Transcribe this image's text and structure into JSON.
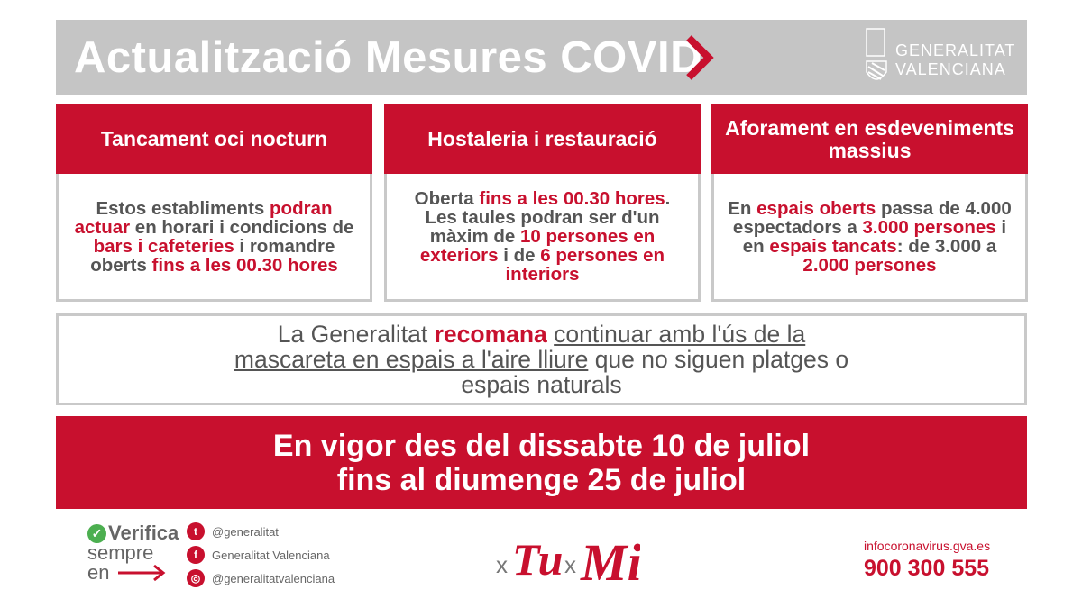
{
  "header": {
    "title": "Actualització Mesures COVID",
    "logo_text": "GENERALITAT VALENCIANA",
    "logo_line1": "GENERALITAT",
    "logo_line2": "VALENCIANA"
  },
  "colors": {
    "brand_red": "#c8102e",
    "header_gray": "#c5c5c5",
    "text_gray": "#555555"
  },
  "columns": [
    {
      "title": "Tancament oci nocturn",
      "body": [
        {
          "t": "Estos establiments ",
          "hl": false
        },
        {
          "t": "podran actuar",
          "hl": true
        },
        {
          "t": " en horari i condicions de ",
          "hl": false
        },
        {
          "t": "bars i cafeteries",
          "hl": true
        },
        {
          "t": " i romandre oberts ",
          "hl": false
        },
        {
          "t": "fins a les 00.30 hores",
          "hl": true
        }
      ]
    },
    {
      "title": "Hostaleria i restauració",
      "body": [
        {
          "t": "Oberta ",
          "hl": false
        },
        {
          "t": "fins a les 00.30 hores",
          "hl": true
        },
        {
          "t": ". Les taules podran ser d'un màxim de ",
          "hl": false
        },
        {
          "t": "10 persones en exteriors",
          "hl": true
        },
        {
          "t": " i de ",
          "hl": false
        },
        {
          "t": "6 persones en interiors",
          "hl": true
        }
      ]
    },
    {
      "title": "Aforament en esdeveniments massius",
      "body": [
        {
          "t": "En ",
          "hl": false
        },
        {
          "t": "espais oberts",
          "hl": true
        },
        {
          "t": " passa de 4.000 espectadors a ",
          "hl": false
        },
        {
          "t": "3.000 persones",
          "hl": true
        },
        {
          "t": " i en ",
          "hl": false
        },
        {
          "t": "espais tancats",
          "hl": true
        },
        {
          "t": ": de 3.000 a ",
          "hl": false
        },
        {
          "t": "2.000 persones",
          "hl": true
        }
      ]
    }
  ],
  "recommendation": {
    "part1": "La Generalitat ",
    "highlight": "recomana",
    "part2": " ",
    "underlined": "continuar amb l'ús de la mascareta en espais a l'aire lliure",
    "part3": " que no siguen platges o espais naturals"
  },
  "banner": {
    "line1": "En vigor des del dissabte 10 de juliol",
    "line2": "fins al diumenge 25 de juliol"
  },
  "footer": {
    "verifica": "Verifica",
    "sempre": "sempre",
    "en": "en",
    "social": [
      {
        "icon": "twitter-icon",
        "glyph": "t",
        "label": "@generalitat"
      },
      {
        "icon": "facebook-icon",
        "glyph": "f",
        "label": "Generalitat Valenciana"
      },
      {
        "icon": "instagram-icon",
        "glyph": "◎",
        "label": "@generalitatvalenciana"
      }
    ],
    "campaign_logo": "xTu xMi",
    "website": "infocoronavirus.gva.es",
    "phone": "900 300 555"
  }
}
